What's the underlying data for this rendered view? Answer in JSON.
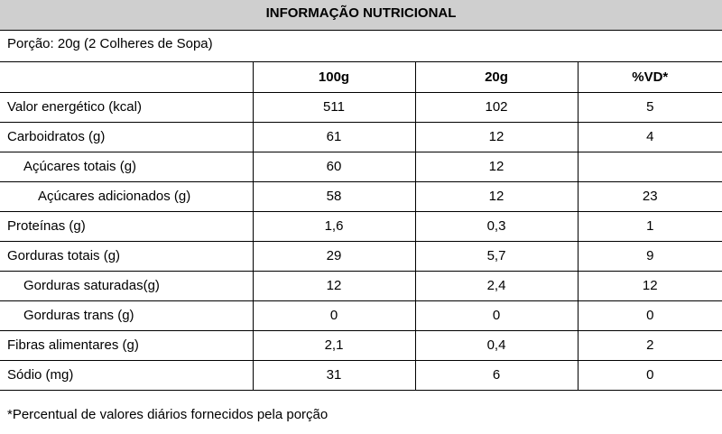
{
  "title": "INFORMAÇÃO NUTRICIONAL",
  "portion": "Porção: 20g (2 Colheres de Sopa)",
  "columns": {
    "name": "",
    "per100": "100g",
    "per20": "20g",
    "vd": "%VD*"
  },
  "rows": [
    {
      "name": "Valor energético (kcal)",
      "per100": "511",
      "per20": "102",
      "vd": "5"
    },
    {
      "name": "Carboidratos (g)",
      "per100": "61",
      "per20": "12",
      "vd": "4"
    },
    {
      "name": "Açúcares totais (g)",
      "per100": "60",
      "per20": "12",
      "vd": ""
    },
    {
      "name": "Açúcares adicionados (g)",
      "per100": "58",
      "per20": "12",
      "vd": "23"
    },
    {
      "name": "Proteínas (g)",
      "per100": "1,6",
      "per20": "0,3",
      "vd": "1"
    },
    {
      "name": "Gorduras totais (g)",
      "per100": "29",
      "per20": "5,7",
      "vd": "9"
    },
    {
      "name": "Gorduras saturadas(g)",
      "per100": "12",
      "per20": "2,4",
      "vd": "12"
    },
    {
      "name": "Gorduras trans (g)",
      "per100": "0",
      "per20": "0",
      "vd": "0"
    },
    {
      "name": "Fibras alimentares (g)",
      "per100": "2,1",
      "per20": "0,4",
      "vd": "2"
    },
    {
      "name": "Sódio (mg)",
      "per100": "31",
      "per20": "6",
      "vd": "0"
    }
  ],
  "footnote": "*Percentual de valores diários fornecidos pela porção"
}
